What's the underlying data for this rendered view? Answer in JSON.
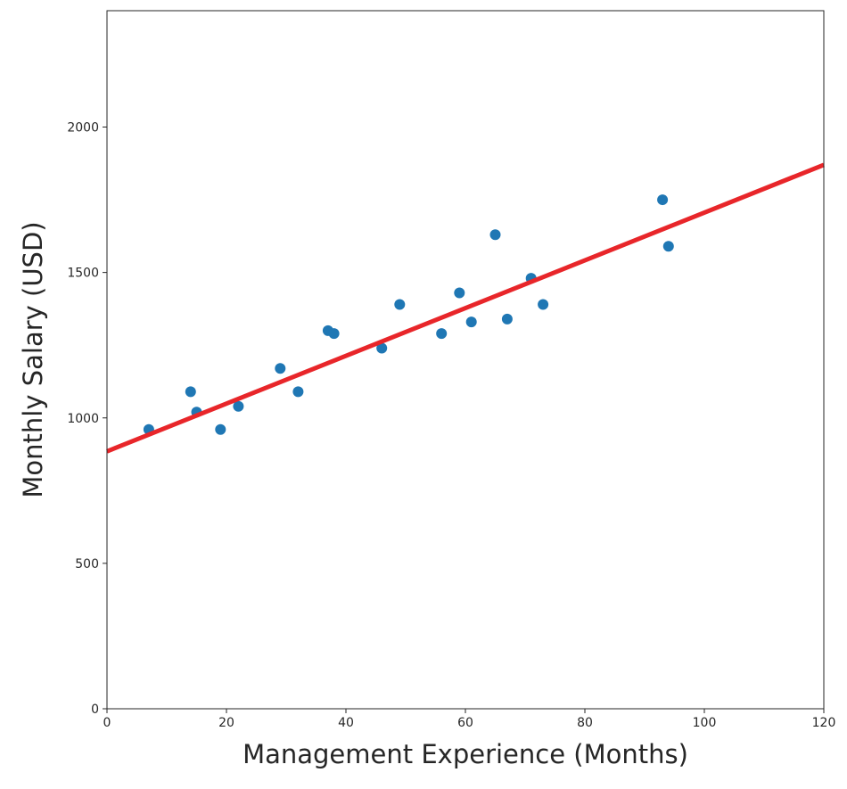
{
  "chart_data": {
    "type": "scatter",
    "title": "",
    "xlabel": "Management Experience (Months)",
    "ylabel": "Monthly Salary (USD)",
    "xlim": [
      0,
      120
    ],
    "ylim": [
      0,
      2400
    ],
    "xticks": [
      0,
      20,
      40,
      60,
      80,
      100,
      120
    ],
    "yticks": [
      0,
      500,
      1000,
      1500,
      2000
    ],
    "grid": false,
    "colors": {
      "points": "#1f77b4",
      "fit_line": "#e8262a",
      "axes": "#262626"
    },
    "series": [
      {
        "type": "scatter",
        "x": [
          7,
          14,
          15,
          19,
          22,
          29,
          32,
          37,
          38,
          46,
          49,
          56,
          59,
          61,
          65,
          67,
          71,
          73,
          93,
          94
        ],
        "y": [
          960,
          1090,
          1020,
          960,
          1040,
          1170,
          1090,
          1300,
          1290,
          1240,
          1390,
          1290,
          1430,
          1330,
          1630,
          1340,
          1480,
          1390,
          1750,
          1590
        ]
      },
      {
        "type": "line",
        "x": [
          0,
          120
        ],
        "y": [
          885,
          1870
        ]
      }
    ]
  }
}
